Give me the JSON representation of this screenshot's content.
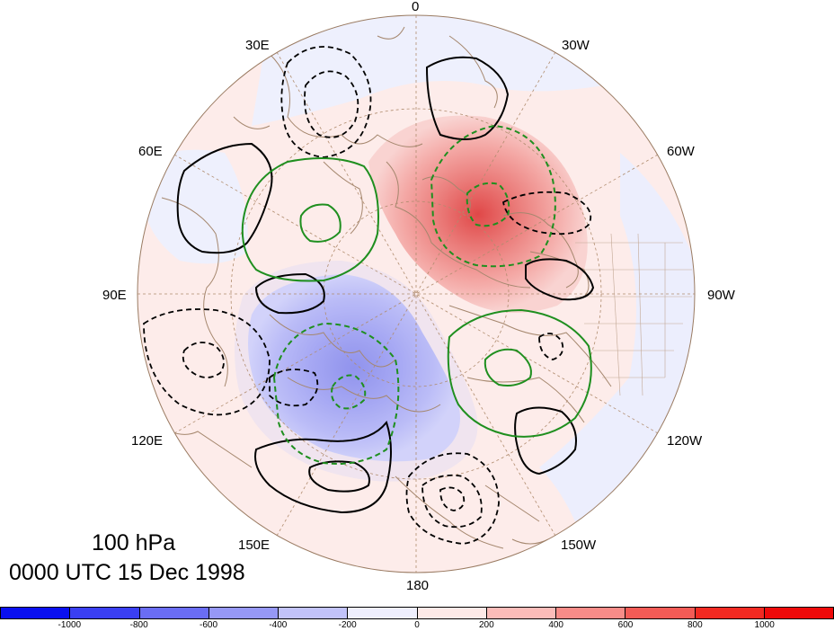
{
  "map": {
    "projection": "polar stereographic, North Pole",
    "longitude_labels": [
      "0",
      "30W",
      "60W",
      "90W",
      "120W",
      "150W",
      "180",
      "150E",
      "120E",
      "90E",
      "60E",
      "30E"
    ],
    "contour_colors": {
      "positive": "#000000",
      "negative_dashed": "#000000",
      "green": "#1f8f1f"
    },
    "coastline_color": "#a5876e",
    "grid_color": "#b08c6e"
  },
  "title": {
    "level": "100 hPa",
    "time": "0000 UTC 15 Dec 1998"
  },
  "colorbar": {
    "labels": [
      "-1000",
      "-800",
      "-600",
      "-400",
      "-200",
      "0",
      "200",
      "400",
      "600",
      "800",
      "1000"
    ],
    "colors": [
      "#0a10f0",
      "#3a3ff2",
      "#6a6df4",
      "#9698f6",
      "#c2c3f9",
      "#eeeefd",
      "#fde9e7",
      "#fbbcb9",
      "#f78c88",
      "#f35b56",
      "#f22a22",
      "#ee0a0a"
    ]
  }
}
